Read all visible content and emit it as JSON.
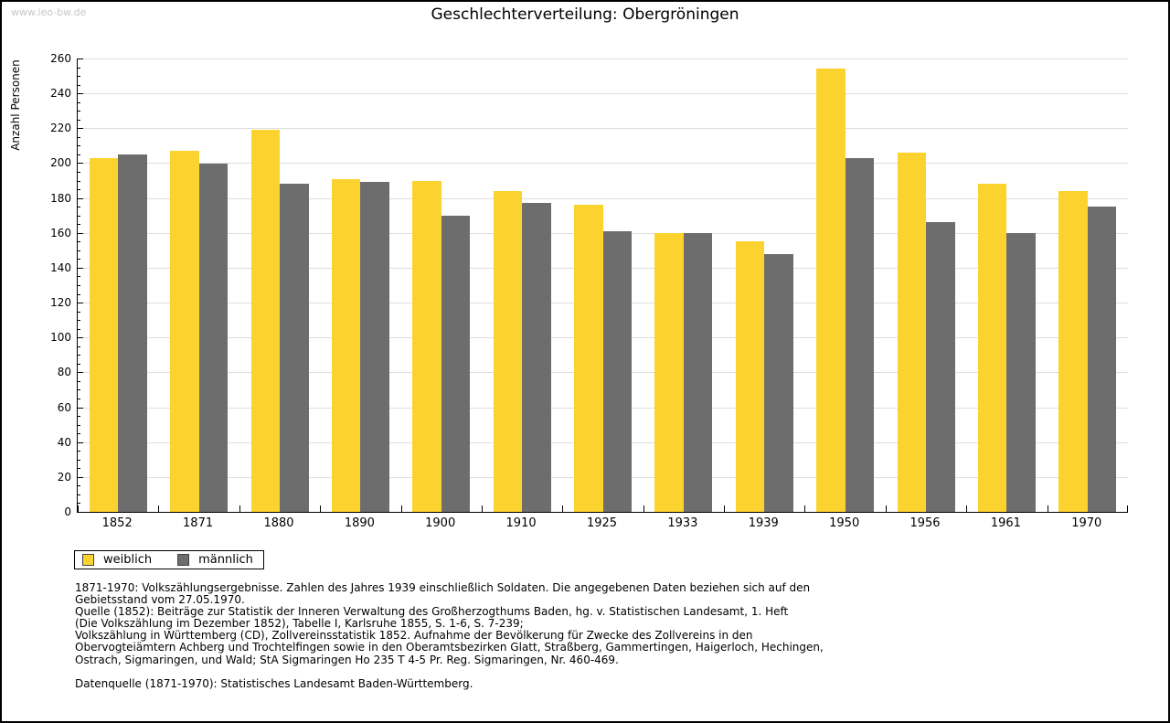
{
  "watermark": "www.leo-bw.de",
  "title": "Geschlechterverteilung: Obergröningen",
  "chart_data": {
    "type": "bar",
    "title": "Geschlechterverteilung: Obergröningen",
    "xlabel": "",
    "ylabel": "Anzahl Personen",
    "ylim": [
      0,
      260
    ],
    "ytick_step": 20,
    "ytick_minor_step": 5,
    "grid": true,
    "legend_position": "bottom-left",
    "categories": [
      "1852",
      "1871",
      "1880",
      "1890",
      "1900",
      "1910",
      "1925",
      "1933",
      "1939",
      "1950",
      "1956",
      "1961",
      "1970"
    ],
    "series": [
      {
        "name": "weiblich",
        "color": "#FCD32E",
        "values": [
          203,
          207,
          219,
          191,
          190,
          184,
          176,
          160,
          155,
          254,
          206,
          188,
          184
        ]
      },
      {
        "name": "männlich",
        "color": "#6D6D6D",
        "values": [
          205,
          200,
          188,
          189,
          170,
          177,
          161,
          160,
          148,
          203,
          166,
          160,
          175
        ]
      }
    ]
  },
  "legend": {
    "items": [
      {
        "label": "weiblich",
        "color": "#FCD32E"
      },
      {
        "label": "männlich",
        "color": "#6D6D6D"
      }
    ]
  },
  "footnotes": {
    "lines": [
      "1871-1970: Volkszählungsergebnisse. Zahlen des Jahres 1939 einschließlich Soldaten. Die angegebenen Daten beziehen sich auf den",
      "Gebietsstand vom 27.05.1970.",
      "Quelle (1852): Beiträge zur Statistik der Inneren Verwaltung des Großherzogthums Baden, hg. v. Statistischen Landesamt, 1. Heft",
      "(Die Volkszählung im Dezember 1852), Tabelle I, Karlsruhe 1855, S. 1-6, S. 7-239;",
      "Volkszählung in Württemberg (CD), Zollvereinsstatistik 1852. Aufnahme der Bevölkerung für Zwecke des Zollvereins in den",
      "Obervogteiämtern Achberg und Trochtelfingen sowie in den Oberamtsbezirken Glatt, Straßberg, Gammertingen, Haigerloch, Hechingen,",
      "Ostrach, Sigmaringen, und Wald; StA Sigmaringen Ho 235 T 4-5 Pr. Reg. Sigmaringen, Nr. 460-469."
    ],
    "datasource": "Datenquelle (1871-1970): Statistisches Landesamt Baden-Württemberg."
  },
  "colors": {
    "background": "#FFFFFF",
    "border": "#000000",
    "gridline": "#DEDEDE",
    "axis": "#000000",
    "watermark": "#C8C8C8",
    "female_bar": "#FCD32E",
    "male_bar": "#6D6D6D"
  }
}
